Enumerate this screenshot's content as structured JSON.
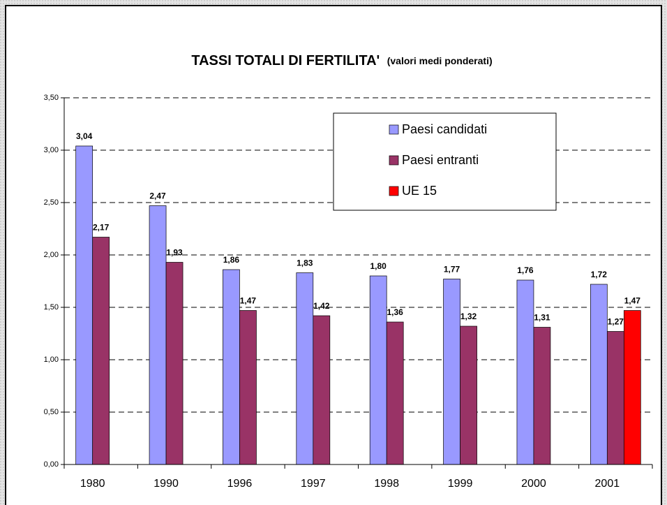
{
  "chart_data": {
    "type": "bar",
    "title": "TASSI TOTALI DI FERTILITA'",
    "subtitle": "(valori medi ponderati)",
    "categories": [
      "1980",
      "1990",
      "1996",
      "1997",
      "1998",
      "1999",
      "2000",
      "2001"
    ],
    "series": [
      {
        "name": "Paesi candidati",
        "color": "#9999ff",
        "values": [
          3.04,
          2.47,
          1.86,
          1.83,
          1.8,
          1.77,
          1.76,
          1.72
        ],
        "value_labels": [
          "3,04",
          "2,47",
          "1,86",
          "1,83",
          "1,80",
          "1,77",
          "1,76",
          "1,72"
        ]
      },
      {
        "name": "Paesi entranti",
        "color": "#993366",
        "values": [
          2.17,
          1.93,
          1.47,
          1.42,
          1.36,
          1.32,
          1.31,
          1.27
        ],
        "value_labels": [
          "2,17",
          "1,93",
          "1,47",
          "1,42",
          "1,36",
          "1,32",
          "1,31",
          "1,27"
        ]
      },
      {
        "name": "UE 15",
        "color": "#ff0000",
        "values": [
          null,
          null,
          null,
          null,
          null,
          null,
          null,
          1.47
        ],
        "value_labels": [
          null,
          null,
          null,
          null,
          null,
          null,
          null,
          "1,47"
        ]
      }
    ],
    "ylim": [
      0,
      3.5
    ],
    "yticks": [
      {
        "value": 0,
        "label": "0,00"
      },
      {
        "value": 0.5,
        "label": "0,50"
      },
      {
        "value": 1,
        "label": "1,00"
      },
      {
        "value": 1.5,
        "label": "1,50"
      },
      {
        "value": 2,
        "label": "2,00"
      },
      {
        "value": 2.5,
        "label": "2,50"
      },
      {
        "value": 3,
        "label": "3,00"
      },
      {
        "value": 3.5,
        "label": "3,50"
      }
    ],
    "grid": true,
    "legend": "upper right"
  }
}
